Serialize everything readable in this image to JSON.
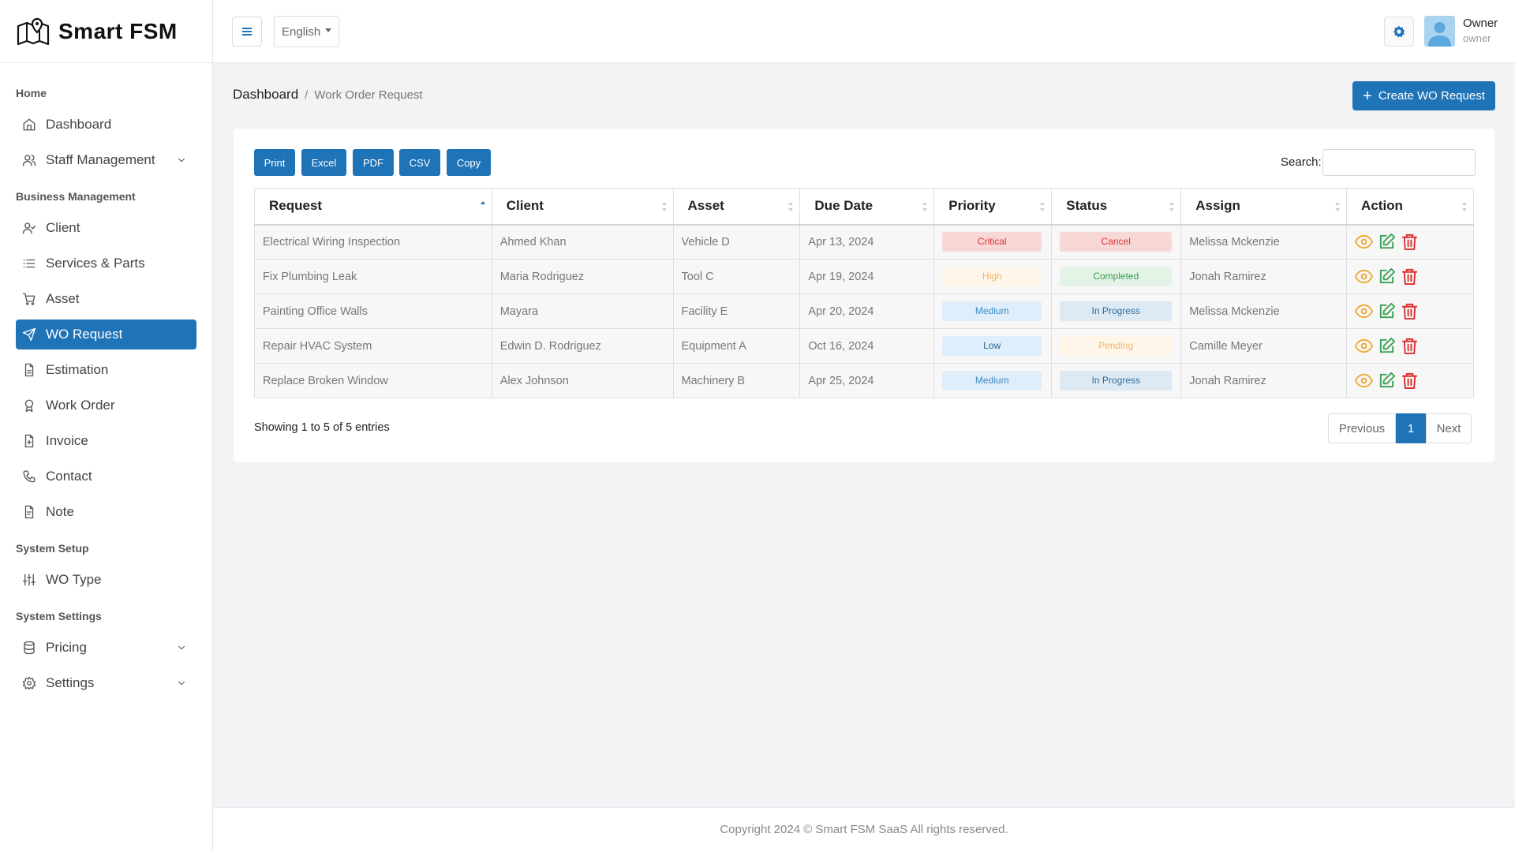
{
  "brand": {
    "name": "Smart FSM",
    "logo_icon": "map-pin-logo-icon"
  },
  "sidebar": {
    "sections": [
      {
        "title": "Home",
        "items": [
          {
            "label": "Dashboard",
            "icon": "home-icon"
          },
          {
            "label": "Staff Management",
            "icon": "users-icon",
            "expandable": true
          }
        ]
      },
      {
        "title": "Business Management",
        "items": [
          {
            "label": "Client",
            "icon": "user-check-icon"
          },
          {
            "label": "Services & Parts",
            "icon": "list-icon"
          },
          {
            "label": "Asset",
            "icon": "cart-icon"
          },
          {
            "label": "WO Request",
            "icon": "send-icon",
            "active": true
          },
          {
            "label": "Estimation",
            "icon": "file-icon"
          },
          {
            "label": "Work Order",
            "icon": "award-icon"
          },
          {
            "label": "Invoice",
            "icon": "file-plus-icon"
          },
          {
            "label": "Contact",
            "icon": "phone-icon"
          },
          {
            "label": "Note",
            "icon": "file-text-icon"
          }
        ]
      },
      {
        "title": "System Setup",
        "items": [
          {
            "label": "WO Type",
            "icon": "sliders-icon"
          }
        ]
      },
      {
        "title": "System Settings",
        "items": [
          {
            "label": "Pricing",
            "icon": "database-icon",
            "expandable": true
          },
          {
            "label": "Settings",
            "icon": "settings-icon",
            "expandable": true
          }
        ]
      }
    ]
  },
  "topbar": {
    "language": "English",
    "user": {
      "name": "Owner",
      "role": "owner"
    }
  },
  "breadcrumb": {
    "root": "Dashboard",
    "separator": "/",
    "current": "Work Order Request"
  },
  "create_button": "Create WO Request",
  "table_tools": {
    "export_buttons": [
      "Print",
      "Excel",
      "PDF",
      "CSV",
      "Copy"
    ],
    "search_label": "Search:",
    "search_value": ""
  },
  "table": {
    "columns": [
      "Request",
      "Client",
      "Asset",
      "Due Date",
      "Priority",
      "Status",
      "Assign",
      "Action"
    ],
    "rows": [
      {
        "request": "Electrical Wiring Inspection",
        "client": "Ahmed Khan",
        "asset": "Vehicle D",
        "due": "Apr 13, 2024",
        "priority": "Critical",
        "status": "Cancel",
        "assign": "Melissa Mckenzie"
      },
      {
        "request": "Fix Plumbing Leak",
        "client": "Maria Rodriguez",
        "asset": "Tool C",
        "due": "Apr 19, 2024",
        "priority": "High",
        "status": "Completed",
        "assign": "Jonah Ramirez"
      },
      {
        "request": "Painting Office Walls",
        "client": "Mayara",
        "asset": "Facility E",
        "due": "Apr 20, 2024",
        "priority": "Medium",
        "status": "In Progress",
        "assign": "Melissa Mckenzie"
      },
      {
        "request": "Repair HVAC System",
        "client": "Edwin D. Rodriguez",
        "asset": "Equipment A",
        "due": "Oct 16, 2024",
        "priority": "Low",
        "status": "Pending",
        "assign": "Camille Meyer"
      },
      {
        "request": "Replace Broken Window",
        "client": "Alex Johnson",
        "asset": "Machinery B",
        "due": "Apr 25, 2024",
        "priority": "Medium",
        "status": "In Progress",
        "assign": "Jonah Ramirez"
      }
    ]
  },
  "table_info": "Showing 1 to 5 of 5 entries",
  "pagination": {
    "previous": "Previous",
    "pages": [
      "1"
    ],
    "current": "1",
    "next": "Next"
  },
  "footer": "Copyright 2024 © Smart FSM SaaS All rights reserved.",
  "colors": {
    "primary": "#1f73b7",
    "view": "#f0a830",
    "edit": "#3aa152",
    "delete": "#dc3030"
  }
}
